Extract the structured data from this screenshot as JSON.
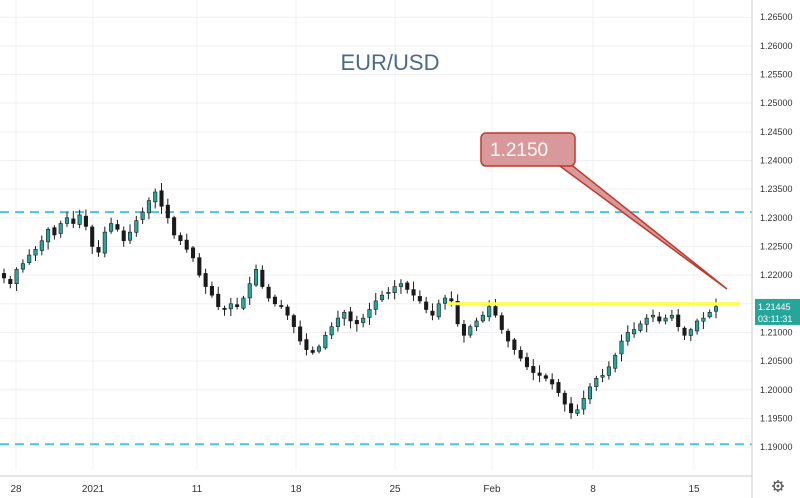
{
  "chart_data": {
    "type": "candlestick",
    "title": "EUR/USD",
    "ylim": [
      1.186,
      1.268
    ],
    "y_ticks": [
      "1.19000",
      "1.19500",
      "1.20000",
      "1.20500",
      "1.21000",
      "1.21500",
      "1.22000",
      "1.22500",
      "1.23000",
      "1.23500",
      "1.24000",
      "1.24500",
      "1.25000",
      "1.25500",
      "1.26000",
      "1.26500"
    ],
    "x_ticks": [
      "28",
      "2021",
      "11",
      "18",
      "25",
      "Feb",
      "8",
      "15"
    ],
    "closes": [
      1.2195,
      1.2185,
      1.221,
      1.222,
      1.2235,
      1.2245,
      1.226,
      1.228,
      1.227,
      1.229,
      1.23,
      1.229,
      1.2305,
      1.2285,
      1.225,
      1.224,
      1.2275,
      1.229,
      1.228,
      1.226,
      1.2275,
      1.2295,
      1.231,
      1.233,
      1.2345,
      1.232,
      1.23,
      1.227,
      1.226,
      1.2245,
      1.223,
      1.22,
      1.218,
      1.2165,
      1.2145,
      1.214,
      1.215,
      1.2145,
      1.216,
      1.2185,
      1.221,
      1.218,
      1.216,
      1.215,
      1.2145,
      1.213,
      1.211,
      1.2085,
      1.207,
      1.2065,
      1.2075,
      1.2095,
      1.211,
      1.2125,
      1.2135,
      1.212,
      1.2115,
      1.2125,
      1.214,
      1.2155,
      1.2165,
      1.217,
      1.218,
      1.2185,
      1.2175,
      1.2165,
      1.2155,
      1.214,
      1.213,
      1.215,
      1.216,
      1.2155,
      1.2115,
      1.2095,
      1.211,
      1.212,
      1.213,
      1.2145,
      1.213,
      1.2105,
      1.2085,
      1.207,
      1.2055,
      1.204,
      1.203,
      1.2025,
      1.202,
      1.201,
      1.1995,
      1.1975,
      1.196,
      1.1965,
      1.1985,
      1.2005,
      1.202,
      1.2025,
      1.204,
      1.206,
      1.2085,
      1.21,
      1.2105,
      1.2115,
      1.2125,
      1.213,
      1.212,
      1.2125,
      1.213,
      1.211,
      1.2095,
      1.2105,
      1.212,
      1.2125,
      1.2135,
      1.2145
    ],
    "resistance_level": 1.215,
    "dashed_levels": [
      1.231,
      1.1905
    ],
    "callout_label": "1.2150",
    "last_price": "1.21445",
    "countdown": "03:11:31",
    "grid": true,
    "colors": {
      "up": "#26a69a",
      "down": "#ef5350",
      "candle": "#1a1a1a",
      "resistance": "#ffff3c",
      "dashed": "#4ec0e0",
      "callout_fill": "#d9999b",
      "callout_stroke": "#c0392b",
      "price_tag": "#26a69a",
      "title": "#4a6a86"
    }
  },
  "toolbar": {
    "settings_icon": "gear-icon"
  }
}
